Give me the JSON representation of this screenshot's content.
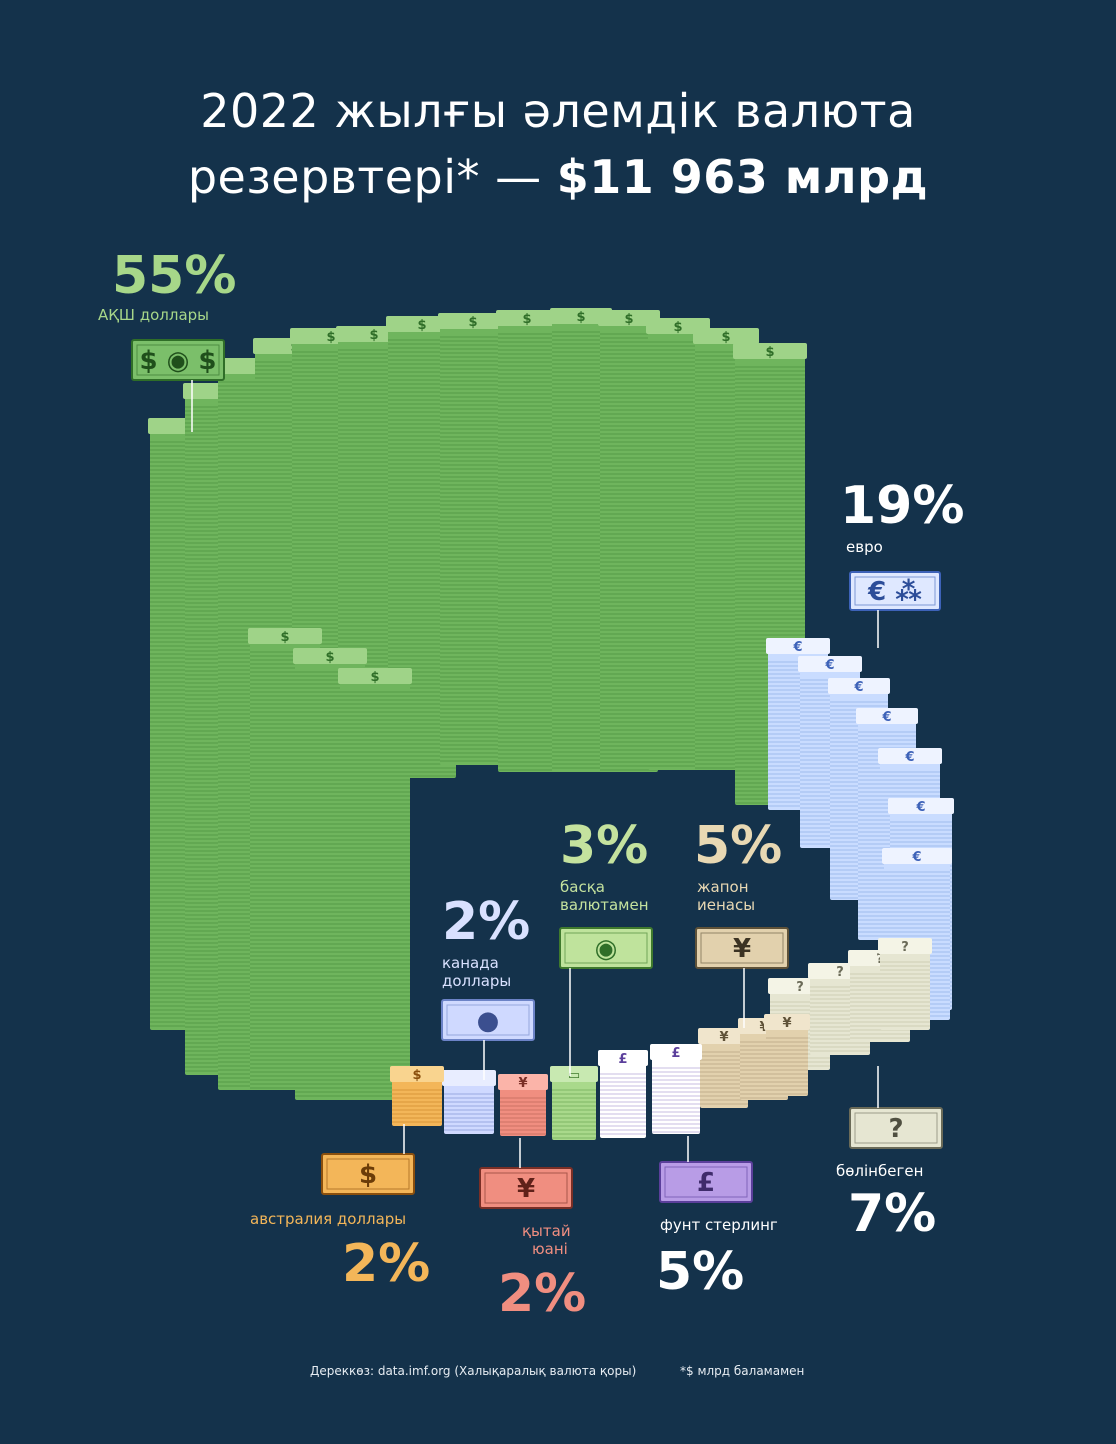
{
  "title": {
    "line1": "2022 жылғы әлемдік валюта",
    "line2_prefix": "резервтері* — ",
    "line2_total": "$11 963 млрд"
  },
  "colors": {
    "background": "#14324b",
    "usd": "#7bbf6a",
    "eur": "#d7e3ff",
    "jpy": "#e2d1ad",
    "gbp": "#ffffff",
    "cny": "#f08e80",
    "cad": "#cfd9ff",
    "aud": "#f3b659",
    "other": "#a9d98b",
    "unallocated": "#ffffff"
  },
  "chart_data": {
    "type": "pie",
    "title": "2022 жылғы әлемдік валюта резервтері* — $11 963 млрд",
    "slices": [
      {
        "label": "АҚШ доллары",
        "percent_label": "55%",
        "value": 55,
        "icon": "dollar-banknote-icon"
      },
      {
        "label": "евро",
        "percent_label": "19%",
        "value": 19,
        "icon": "euro-banknote-icon"
      },
      {
        "label": "бөлінбеген",
        "percent_label": "7%",
        "value": 7,
        "icon": "question-banknote-icon"
      },
      {
        "label": "жапон иенасы",
        "percent_label": "5%",
        "value": 5,
        "icon": "yen-banknote-icon"
      },
      {
        "label": "фунт стерлинг",
        "percent_label": "5%",
        "value": 5,
        "icon": "pound-banknote-icon"
      },
      {
        "label": "басқа валютамен",
        "percent_label": "3%",
        "value": 3,
        "icon": "generic-banknote-icon"
      },
      {
        "label": "қытай юані",
        "percent_label": "2%",
        "value": 2,
        "icon": "yuan-banknote-icon"
      },
      {
        "label": "канада доллары",
        "percent_label": "2%",
        "value": 2,
        "icon": "canadian-banknote-icon"
      },
      {
        "label": "австралия доллары",
        "percent_label": "2%",
        "value": 2,
        "icon": "australian-banknote-icon"
      }
    ]
  },
  "labels": {
    "usd": {
      "pct": "55%",
      "name": "АҚШ доллары"
    },
    "eur": {
      "pct": "19%",
      "name": "евро"
    },
    "other": {
      "pct": "3%",
      "line1": "басқа",
      "line2": "валютамен"
    },
    "jpy": {
      "pct": "5%",
      "line1": "жапон",
      "line2": "иенасы"
    },
    "cad": {
      "pct": "2%",
      "line1": "канада",
      "line2": "доллары"
    },
    "aud": {
      "pct": "2%",
      "name": "австралия доллары"
    },
    "cny": {
      "pct": "2%",
      "line1": "қытай",
      "line2": "юані"
    },
    "gbp": {
      "pct": "5%",
      "name": "фунт стерлинг"
    },
    "unallocated": {
      "pct": "7%",
      "name": "бөлінбеген"
    }
  },
  "footer": {
    "source": "Дереккөз: data.imf.org (Халықаралық валюта қоры)",
    "note": "*$ млрд баламамен"
  }
}
